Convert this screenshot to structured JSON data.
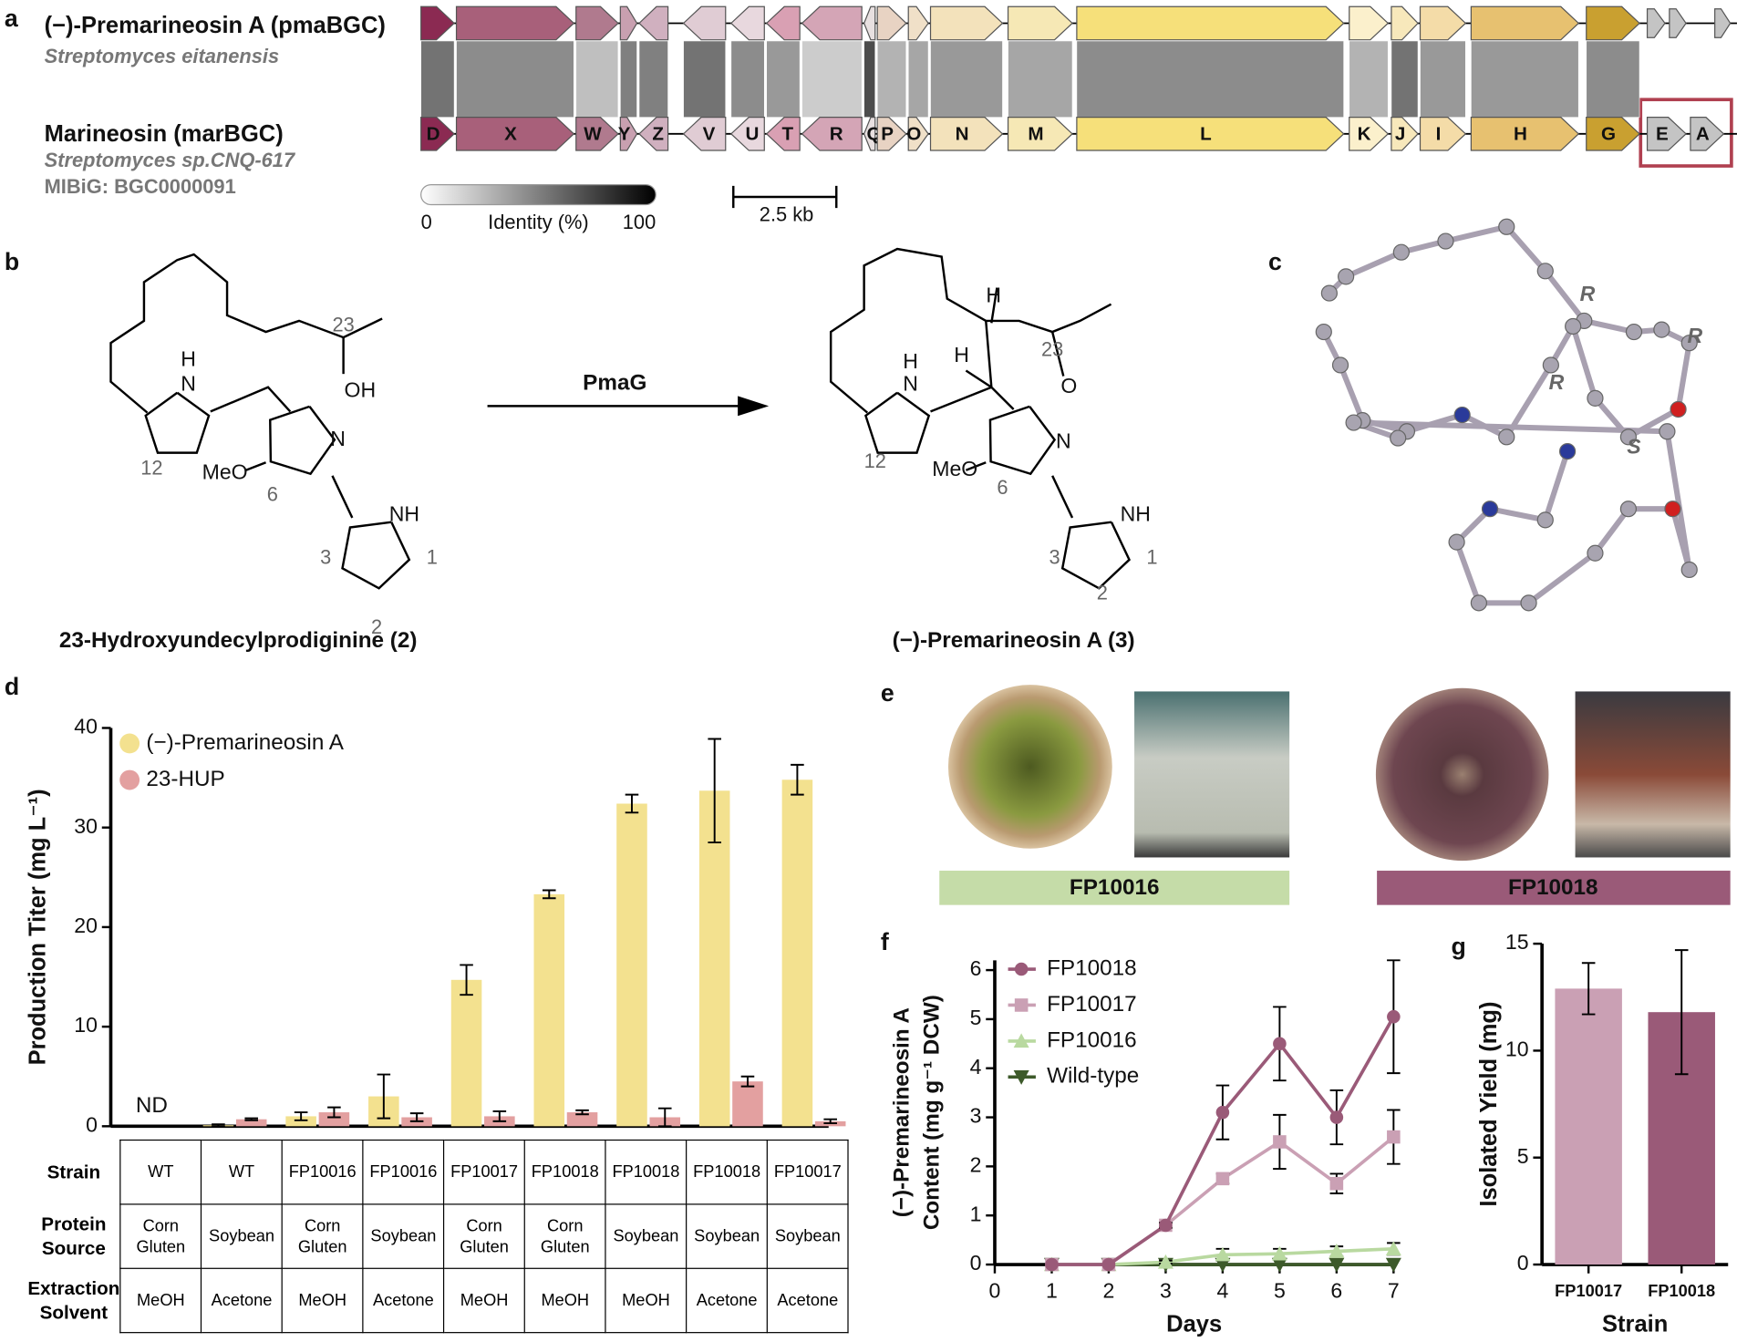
{
  "panel_labels": [
    "a",
    "b",
    "c",
    "d",
    "e",
    "f",
    "g"
  ],
  "panel_a": {
    "cluster1_name": "(−)-Premarineosin A (pmaBGC)",
    "cluster1_organism": "Streptomyces eitanensis",
    "cluster2_name": "Marineosin (marBGC)",
    "cluster2_organism": "Streptomyces sp.CNQ-617",
    "cluster2_mibig": "MIBiG: BGC0000091",
    "genes": [
      "D",
      "X",
      "W",
      "Y",
      "Z",
      "V",
      "U",
      "T",
      "R",
      "Q",
      "P",
      "O",
      "N",
      "M",
      "L",
      "K",
      "J",
      "I",
      "H",
      "G",
      "E",
      "A"
    ],
    "identity_label": "Identity (%)",
    "identity_min": "0",
    "identity_max": "100",
    "scale_label": "2.5 kb"
  },
  "panel_b": {
    "substrate_labels": [
      "23",
      "OH",
      "H",
      "N",
      "N",
      "MeO",
      "6",
      "12",
      "NH",
      "3",
      "2",
      "1"
    ],
    "substrate_name": "23-Hydroxyundecylprodiginine (2)",
    "enzyme": "PmaG",
    "product_labels": [
      "H",
      "H",
      "23",
      "O",
      "H",
      "N",
      "N",
      "MeO",
      "6",
      "12",
      "NH",
      "3",
      "2",
      "1"
    ],
    "product_name": "(−)-Premarineosin A (3)"
  },
  "panel_c": {
    "stereo_labels": [
      "R",
      "R",
      "R",
      "S"
    ]
  },
  "panel_e": {
    "strains": [
      "FP10016",
      "FP10018"
    ]
  },
  "chart_data": [
    {
      "type": "bar",
      "ylabel": "Production Titer (mg L⁻¹)",
      "ylim": [
        0,
        40
      ],
      "yticks": [
        0,
        10,
        20,
        30,
        40
      ],
      "legend": "upper left",
      "annotation": "ND",
      "series": [
        {
          "name": "(−)-Premarineosin A",
          "color": "#f3e18f",
          "values": [
            0,
            0.1,
            1.0,
            3.0,
            14.7,
            23.3,
            32.4,
            33.7,
            34.8
          ],
          "errors": [
            0,
            0.1,
            0.4,
            2.2,
            1.5,
            0.4,
            0.9,
            5.2,
            1.5
          ]
        },
        {
          "name": "23-HUP",
          "color": "#e3a0a0",
          "values": [
            0,
            0.7,
            1.4,
            0.9,
            1.0,
            1.4,
            0.9,
            4.5,
            0.5
          ],
          "errors": [
            0,
            0.1,
            0.5,
            0.4,
            0.5,
            0.2,
            0.9,
            0.5,
            0.2
          ]
        }
      ],
      "table": {
        "headers": [
          "Strain",
          "Protein Source",
          "Extraction Solvent"
        ],
        "rows": [
          [
            "WT",
            "WT",
            "FP10016",
            "FP10016",
            "FP10017",
            "FP10018",
            "FP10018",
            "FP10018",
            "FP10017"
          ],
          [
            "Corn Gluten",
            "Soybean",
            "Corn Gluten",
            "Soybean",
            "Corn Gluten",
            "Corn Gluten",
            "Soybean",
            "Soybean",
            "Soybean"
          ],
          [
            "MeOH",
            "Acetone",
            "MeOH",
            "Acetone",
            "MeOH",
            "MeOH",
            "MeOH",
            "Acetone",
            "Acetone"
          ]
        ]
      }
    },
    {
      "type": "line",
      "xlabel": "Days",
      "ylabel": [
        "(−)-Premarineosin A",
        "Content (mg g⁻¹ DCW)"
      ],
      "x": [
        1,
        2,
        3,
        4,
        5,
        6,
        7
      ],
      "xlim": [
        0,
        7
      ],
      "xticks": [
        0,
        1,
        2,
        3,
        4,
        5,
        6,
        7
      ],
      "ylim": [
        0,
        6.2
      ],
      "yticks": [
        0,
        1,
        2,
        3,
        4,
        5,
        6
      ],
      "legend": "upper left",
      "series": [
        {
          "name": "FP10018",
          "color": "#9a5a78",
          "marker": "circle",
          "values": [
            0,
            0,
            0.8,
            3.1,
            4.5,
            3.0,
            5.05
          ],
          "errors": [
            0,
            0,
            0.05,
            0.55,
            0.75,
            0.55,
            1.15
          ]
        },
        {
          "name": "FP10017",
          "color": "#caa0b4",
          "marker": "square",
          "values": [
            0,
            0,
            0.8,
            1.75,
            2.5,
            1.65,
            2.6
          ],
          "errors": [
            0,
            0,
            0.05,
            0.1,
            0.55,
            0.2,
            0.55
          ]
        },
        {
          "name": "FP10016",
          "color": "#b9d9a0",
          "marker": "triangle-up",
          "values": [
            0,
            0,
            0.05,
            0.2,
            0.22,
            0.27,
            0.32
          ],
          "errors": [
            0,
            0,
            0.03,
            0.12,
            0.1,
            0.1,
            0.12
          ]
        },
        {
          "name": "Wild-type",
          "color": "#3d5a2a",
          "marker": "triangle-down",
          "values": [
            0,
            0,
            0,
            0,
            0,
            0,
            0
          ],
          "errors": [
            0,
            0,
            0,
            0,
            0,
            0,
            0
          ]
        }
      ]
    },
    {
      "type": "bar",
      "xlabel": "Strain",
      "ylabel": "Isolated Yield (mg)",
      "categories": [
        "FP10017",
        "FP10018"
      ],
      "values": [
        12.9,
        11.8
      ],
      "errors": [
        1.2,
        2.9
      ],
      "colors": [
        "#caa0b4",
        "#9a5a78"
      ],
      "ylim": [
        0,
        15
      ],
      "yticks": [
        0,
        5,
        10,
        15
      ]
    }
  ]
}
